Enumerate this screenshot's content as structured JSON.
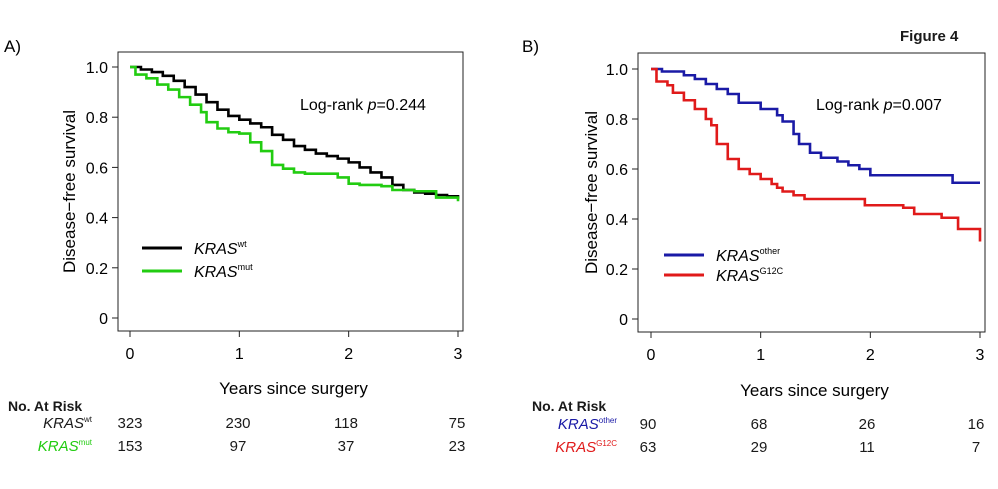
{
  "figure_title": "Figure 4",
  "chart_data": [
    {
      "type": "line",
      "panel": "A)",
      "xlabel": "Years since surgery",
      "ylabel": "Disease−free survival",
      "xlim": [
        0,
        3
      ],
      "ylim": [
        0,
        1.0
      ],
      "xticks": [
        "0",
        "1",
        "2",
        "3"
      ],
      "yticks": [
        "0",
        "0.2",
        "0.4",
        "0.6",
        "0.8",
        "1.0"
      ],
      "annotation": {
        "pre": "Log-rank ",
        "p": "p",
        "post": "=0.244"
      },
      "legend_position": "bottom-left",
      "series": [
        {
          "name_base": "KRAS",
          "name_sup": "wt",
          "color": "#000000",
          "points": [
            [
              0,
              1.0
            ],
            [
              0.1,
              0.99
            ],
            [
              0.2,
              0.98
            ],
            [
              0.3,
              0.965
            ],
            [
              0.4,
              0.945
            ],
            [
              0.5,
              0.92
            ],
            [
              0.6,
              0.89
            ],
            [
              0.7,
              0.86
            ],
            [
              0.8,
              0.83
            ],
            [
              0.9,
              0.805
            ],
            [
              1.0,
              0.79
            ],
            [
              1.1,
              0.775
            ],
            [
              1.2,
              0.76
            ],
            [
              1.3,
              0.73
            ],
            [
              1.4,
              0.71
            ],
            [
              1.5,
              0.685
            ],
            [
              1.6,
              0.67
            ],
            [
              1.7,
              0.655
            ],
            [
              1.8,
              0.645
            ],
            [
              1.9,
              0.635
            ],
            [
              2.0,
              0.62
            ],
            [
              2.1,
              0.6
            ],
            [
              2.2,
              0.58
            ],
            [
              2.3,
              0.56
            ],
            [
              2.4,
              0.53
            ],
            [
              2.5,
              0.51
            ],
            [
              2.6,
              0.5
            ],
            [
              2.7,
              0.495
            ],
            [
              2.8,
              0.49
            ],
            [
              2.9,
              0.485
            ],
            [
              3.0,
              0.475
            ]
          ]
        },
        {
          "name_base": "KRAS",
          "name_sup": "mut",
          "color": "#22cc11",
          "points": [
            [
              0,
              1.0
            ],
            [
              0.05,
              0.97
            ],
            [
              0.15,
              0.955
            ],
            [
              0.25,
              0.93
            ],
            [
              0.35,
              0.91
            ],
            [
              0.45,
              0.88
            ],
            [
              0.55,
              0.85
            ],
            [
              0.65,
              0.82
            ],
            [
              0.7,
              0.78
            ],
            [
              0.8,
              0.755
            ],
            [
              0.9,
              0.74
            ],
            [
              1.0,
              0.735
            ],
            [
              1.1,
              0.7
            ],
            [
              1.2,
              0.665
            ],
            [
              1.3,
              0.61
            ],
            [
              1.4,
              0.595
            ],
            [
              1.5,
              0.58
            ],
            [
              1.6,
              0.575
            ],
            [
              1.8,
              0.575
            ],
            [
              1.9,
              0.56
            ],
            [
              2.0,
              0.535
            ],
            [
              2.1,
              0.53
            ],
            [
              2.3,
              0.525
            ],
            [
              2.4,
              0.51
            ],
            [
              2.6,
              0.505
            ],
            [
              2.8,
              0.48
            ],
            [
              2.9,
              0.48
            ],
            [
              3.0,
              0.465
            ]
          ]
        }
      ],
      "risk_table": {
        "title": "No. At Risk",
        "times": [
          0,
          1,
          2,
          3
        ],
        "rows": [
          {
            "label_base": "KRAS",
            "label_sup": "wt",
            "color": "#000000",
            "counts": [
              "323",
              "230",
              "118",
              "75"
            ]
          },
          {
            "label_base": "KRAS",
            "label_sup": "mut",
            "color": "#22cc11",
            "counts": [
              "153",
              "97",
              "37",
              "23"
            ]
          }
        ]
      }
    },
    {
      "type": "line",
      "panel": "B)",
      "xlabel": "Years since surgery",
      "ylabel": "Disease−free survival",
      "xlim": [
        0,
        3
      ],
      "ylim": [
        0,
        1.0
      ],
      "xticks": [
        "0",
        "1",
        "2",
        "3"
      ],
      "yticks": [
        "0",
        "0.2",
        "0.4",
        "0.6",
        "0.8",
        "1.0"
      ],
      "annotation": {
        "pre": "Log-rank ",
        "p": "p",
        "post": "=0.007"
      },
      "legend_position": "bottom-left",
      "series": [
        {
          "name_base": "KRAS",
          "name_sup": "other",
          "color": "#1a1aa6",
          "points": [
            [
              0,
              1.0
            ],
            [
              0.1,
              0.99
            ],
            [
              0.3,
              0.975
            ],
            [
              0.4,
              0.96
            ],
            [
              0.5,
              0.94
            ],
            [
              0.6,
              0.92
            ],
            [
              0.7,
              0.9
            ],
            [
              0.8,
              0.865
            ],
            [
              0.9,
              0.865
            ],
            [
              1.0,
              0.84
            ],
            [
              1.1,
              0.84
            ],
            [
              1.15,
              0.815
            ],
            [
              1.2,
              0.79
            ],
            [
              1.3,
              0.74
            ],
            [
              1.35,
              0.7
            ],
            [
              1.45,
              0.665
            ],
            [
              1.55,
              0.645
            ],
            [
              1.7,
              0.63
            ],
            [
              1.8,
              0.615
            ],
            [
              1.9,
              0.6
            ],
            [
              2.0,
              0.575
            ],
            [
              2.4,
              0.575
            ],
            [
              2.7,
              0.575
            ],
            [
              2.75,
              0.545
            ],
            [
              3.0,
              0.545
            ]
          ]
        },
        {
          "name_base": "KRAS",
          "name_sup": "G12C",
          "color": "#e01a1a",
          "points": [
            [
              0,
              1.0
            ],
            [
              0.05,
              0.95
            ],
            [
              0.15,
              0.935
            ],
            [
              0.2,
              0.905
            ],
            [
              0.3,
              0.875
            ],
            [
              0.4,
              0.84
            ],
            [
              0.5,
              0.8
            ],
            [
              0.55,
              0.775
            ],
            [
              0.6,
              0.7
            ],
            [
              0.7,
              0.64
            ],
            [
              0.8,
              0.6
            ],
            [
              0.9,
              0.58
            ],
            [
              1.0,
              0.56
            ],
            [
              1.1,
              0.54
            ],
            [
              1.15,
              0.525
            ],
            [
              1.2,
              0.51
            ],
            [
              1.3,
              0.495
            ],
            [
              1.4,
              0.48
            ],
            [
              1.9,
              0.48
            ],
            [
              1.95,
              0.455
            ],
            [
              2.3,
              0.445
            ],
            [
              2.4,
              0.42
            ],
            [
              2.65,
              0.405
            ],
            [
              2.8,
              0.36
            ],
            [
              3.0,
              0.355
            ],
            [
              3.0,
              0.31
            ]
          ]
        }
      ],
      "risk_table": {
        "title": "No. At Risk",
        "times": [
          0,
          1,
          2,
          3
        ],
        "rows": [
          {
            "label_base": "KRAS",
            "label_sup": "other",
            "color": "#1a1aa6",
            "counts": [
              "90",
              "68",
              "26",
              "16"
            ]
          },
          {
            "label_base": "KRAS",
            "label_sup": "G12C",
            "color": "#e01a1a",
            "counts": [
              "63",
              "29",
              "11",
              "7"
            ]
          }
        ]
      }
    }
  ]
}
